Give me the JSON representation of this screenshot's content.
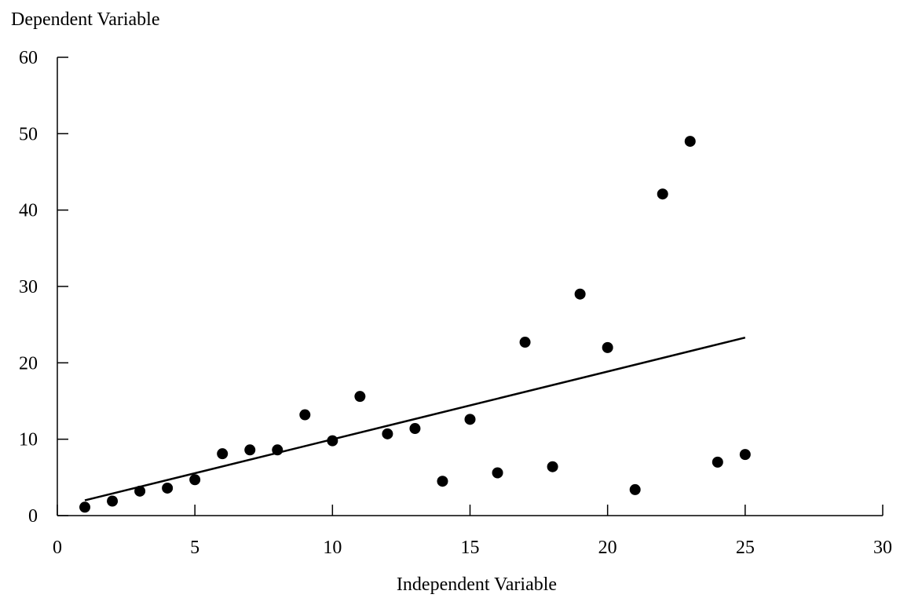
{
  "chart_data": {
    "type": "scatter",
    "title": "",
    "xlabel": "Independent Variable",
    "ylabel": "Dependent Variable",
    "xlim": [
      0,
      30
    ],
    "ylim": [
      0,
      60
    ],
    "x_ticks": [
      0,
      5,
      10,
      15,
      20,
      25,
      30
    ],
    "y_ticks": [
      0,
      10,
      20,
      30,
      40,
      50,
      60
    ],
    "grid": false,
    "legend": "none",
    "colors": {
      "points": "#000000",
      "line": "#000000",
      "axes": "#000000"
    },
    "series": [
      {
        "kind": "points",
        "x": [
          1,
          2,
          3,
          4,
          5,
          6,
          7,
          8,
          9,
          10,
          11,
          12,
          13,
          14,
          15,
          16,
          17,
          18,
          19,
          20,
          21,
          22,
          23,
          24,
          25
        ],
        "y": [
          1.1,
          1.9,
          3.2,
          3.6,
          4.7,
          8.1,
          8.6,
          8.6,
          13.2,
          9.8,
          15.6,
          10.7,
          11.4,
          4.5,
          12.6,
          5.6,
          22.7,
          6.4,
          29.0,
          22.0,
          3.4,
          42.1,
          49.0,
          7.0,
          8.0
        ]
      },
      {
        "kind": "fitted-line",
        "x": [
          1,
          25
        ],
        "y": [
          2.0,
          23.3
        ]
      }
    ]
  }
}
